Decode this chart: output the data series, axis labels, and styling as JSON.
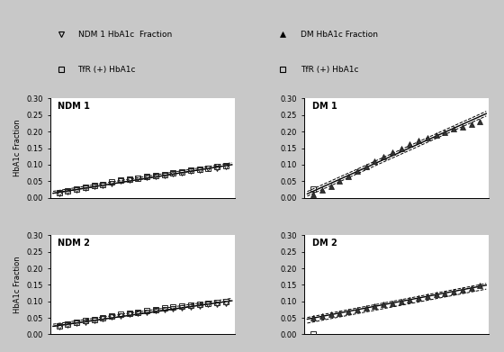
{
  "ndm1_x": [
    1,
    2,
    3,
    4,
    5,
    6,
    7,
    8,
    9,
    10,
    11,
    12,
    13,
    14,
    15,
    16,
    17,
    18,
    19,
    20
  ],
  "ndm1_tri": [
    0.013,
    0.018,
    0.022,
    0.028,
    0.033,
    0.038,
    0.043,
    0.05,
    0.053,
    0.058,
    0.062,
    0.065,
    0.068,
    0.072,
    0.076,
    0.08,
    0.083,
    0.088,
    0.09,
    0.093
  ],
  "ndm1_sq": [
    0.016,
    0.02,
    0.025,
    0.031,
    0.036,
    0.041,
    0.047,
    0.052,
    0.056,
    0.06,
    0.064,
    0.068,
    0.071,
    0.075,
    0.079,
    0.082,
    0.086,
    0.09,
    0.093,
    0.097
  ],
  "dm1_x": [
    1,
    2,
    3,
    4,
    5,
    6,
    7,
    8,
    9,
    10,
    11,
    12,
    13,
    14,
    15,
    16,
    17,
    18,
    19,
    20
  ],
  "dm1_tri": [
    0.01,
    0.022,
    0.035,
    0.05,
    0.065,
    0.08,
    0.095,
    0.11,
    0.125,
    0.138,
    0.15,
    0.162,
    0.172,
    0.182,
    0.19,
    0.198,
    0.208,
    0.215,
    0.222,
    0.23
  ],
  "dm1_sq_x": [
    1
  ],
  "dm1_sq": [
    0.025
  ],
  "ndm2_x": [
    1,
    2,
    3,
    4,
    5,
    6,
    7,
    8,
    9,
    10,
    11,
    12,
    13,
    14,
    15,
    16,
    17,
    18,
    19,
    20
  ],
  "ndm2_tri": [
    0.022,
    0.028,
    0.033,
    0.038,
    0.042,
    0.047,
    0.052,
    0.056,
    0.06,
    0.064,
    0.068,
    0.072,
    0.075,
    0.078,
    0.081,
    0.084,
    0.087,
    0.09,
    0.092,
    0.095
  ],
  "ndm2_sq": [
    0.026,
    0.031,
    0.036,
    0.041,
    0.046,
    0.051,
    0.055,
    0.06,
    0.064,
    0.068,
    0.072,
    0.076,
    0.079,
    0.082,
    0.085,
    0.088,
    0.091,
    0.094,
    0.096,
    0.099
  ],
  "dm2_x": [
    1,
    2,
    3,
    4,
    5,
    6,
    7,
    8,
    9,
    10,
    11,
    12,
    13,
    14,
    15,
    16,
    17,
    18,
    19,
    20
  ],
  "dm2_tri": [
    0.05,
    0.055,
    0.06,
    0.065,
    0.07,
    0.075,
    0.08,
    0.085,
    0.09,
    0.095,
    0.1,
    0.105,
    0.11,
    0.115,
    0.12,
    0.125,
    0.13,
    0.135,
    0.14,
    0.148
  ],
  "dm2_sq_x": [
    1
  ],
  "dm2_sq": [
    0.0
  ],
  "ylabel": "HbA1c Fraction",
  "ylim": [
    0.0,
    0.3
  ],
  "yticks": [
    0.0,
    0.05,
    0.1,
    0.15,
    0.2,
    0.25,
    0.3
  ],
  "fig_bg": "#c8c8c8",
  "legend_bg": "#cccccc",
  "plot_bg": "#ffffff"
}
